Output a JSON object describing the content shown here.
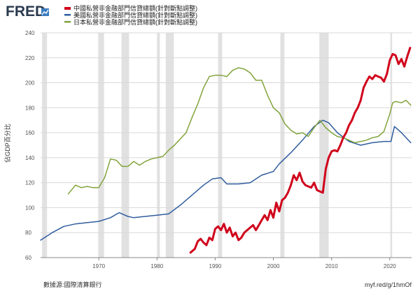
{
  "brand": {
    "logo_text": "FRED"
  },
  "footer": {
    "source": "數據源:國際清算銀行",
    "link": "myf.red/g/1hmOf"
  },
  "chart_data": {
    "type": "line",
    "ylabel": "佔GDP百分比",
    "xlim": [
      1960,
      2023.75
    ],
    "ylim": [
      60,
      240
    ],
    "y_ticks": [
      60,
      80,
      100,
      120,
      140,
      160,
      180,
      200,
      220,
      240
    ],
    "x_ticks": [
      1970,
      1980,
      1990,
      2000,
      2010,
      2020
    ],
    "grid": true,
    "legend_position": "top-left",
    "recessions": [
      [
        1960.25,
        1961.1
      ],
      [
        1969.9,
        1970.9
      ],
      [
        1973.9,
        1975.2
      ],
      [
        1980.0,
        1980.5
      ],
      [
        1981.5,
        1982.9
      ],
      [
        1990.5,
        1991.2
      ],
      [
        2001.2,
        2001.9
      ],
      [
        2007.9,
        2009.5
      ],
      [
        2020.1,
        2020.4
      ]
    ],
    "series": [
      {
        "name": "中國私營非金融部門信貸總額(針對斷點調整)",
        "color": "#d0021b",
        "x": [
          1985.75,
          1986.5,
          1987,
          1987.5,
          1988,
          1988.5,
          1989,
          1989.5,
          1990,
          1990.5,
          1991,
          1991.5,
          1992,
          1992.5,
          1993,
          1993.5,
          1994,
          1994.5,
          1995,
          1995.5,
          1996,
          1996.5,
          1997,
          1997.5,
          1998,
          1998.5,
          1999,
          1999.5,
          2000,
          2000.5,
          2001,
          2001.5,
          2002,
          2002.5,
          2003,
          2003.5,
          2004,
          2004.5,
          2005,
          2005.5,
          2006,
          2006.5,
          2007,
          2007.5,
          2008,
          2008.5,
          2009,
          2009.5,
          2010,
          2010.5,
          2011,
          2011.5,
          2012,
          2012.5,
          2013,
          2013.5,
          2014,
          2014.5,
          2015,
          2015.5,
          2016,
          2016.5,
          2017,
          2017.5,
          2018,
          2018.5,
          2019,
          2019.5,
          2020,
          2020.5,
          2021,
          2021.5,
          2022,
          2022.5,
          2023,
          2023.5
        ],
        "values": [
          64,
          67,
          73,
          75,
          72,
          70,
          76,
          74,
          83,
          85,
          82,
          87,
          80,
          84,
          77,
          80,
          74,
          76,
          80,
          82,
          84,
          86,
          82,
          86,
          90,
          94,
          90,
          98,
          92,
          104,
          97,
          106,
          108,
          112,
          118,
          126,
          122,
          128,
          121,
          118,
          117,
          116,
          120,
          114,
          113,
          112,
          131,
          140,
          145,
          146,
          145,
          150,
          156,
          160,
          166,
          170,
          176,
          180,
          186,
          196,
          201,
          205,
          203,
          206,
          205,
          204,
          201,
          207,
          218,
          223,
          222,
          215,
          219,
          213,
          221,
          228
        ]
      },
      {
        "name": "美國私營非金融部門信貸總額(針對斷點調整)",
        "color": "#2f5d9e",
        "x": [
          1960,
          1962,
          1964,
          1966,
          1968,
          1970,
          1972,
          1973.5,
          1975,
          1976,
          1978,
          1980,
          1982,
          1984,
          1986,
          1988,
          1989.5,
          1991,
          1992,
          1994,
          1996,
          1998,
          2000,
          2001,
          2003,
          2005,
          2007,
          2008.5,
          2009.5,
          2011,
          2013,
          2015,
          2017,
          2019,
          2020.2,
          2020.8,
          2022,
          2023.6
        ],
        "values": [
          74,
          80,
          85,
          87,
          88,
          89,
          92,
          96,
          93,
          92,
          93,
          94,
          95,
          102,
          110,
          118,
          123,
          124,
          119,
          119,
          120,
          126,
          129,
          135,
          144,
          154,
          165,
          170,
          168,
          160,
          153,
          150,
          152,
          153,
          153,
          165,
          160,
          152
        ]
      },
      {
        "name": "日本私營非金融部門信貸總額(針對斷點調整)",
        "color": "#82a33b",
        "x": [
          1964.75,
          1966,
          1967,
          1968,
          1969,
          1970,
          1971,
          1972,
          1973,
          1974,
          1975,
          1976,
          1977,
          1978,
          1979,
          1980,
          1981,
          1982,
          1983,
          1984,
          1985,
          1986,
          1987,
          1988,
          1989,
          1990,
          1991,
          1992,
          1993,
          1994,
          1995,
          1996,
          1997,
          1998,
          1999,
          2000,
          2001,
          2002,
          2003,
          2004,
          2005,
          2006,
          2007,
          2008,
          2009,
          2010,
          2011,
          2012,
          2013,
          2014,
          2015,
          2016,
          2017,
          2018,
          2019,
          2020,
          2020.5,
          2021,
          2022,
          2022.8,
          2023.6
        ],
        "values": [
          111,
          118,
          116,
          117,
          116,
          116,
          124,
          139,
          138,
          133,
          133,
          137,
          134,
          137,
          139,
          140,
          141,
          146,
          150,
          155,
          160,
          172,
          183,
          196,
          205,
          206,
          206,
          205,
          210,
          212,
          211,
          208,
          202,
          202,
          190,
          180,
          176,
          167,
          162,
          159,
          160,
          157,
          164,
          170,
          164,
          160,
          157,
          156,
          154,
          152,
          153,
          154,
          156,
          157,
          161,
          175,
          184,
          185,
          184,
          186,
          182
        ]
      }
    ]
  }
}
